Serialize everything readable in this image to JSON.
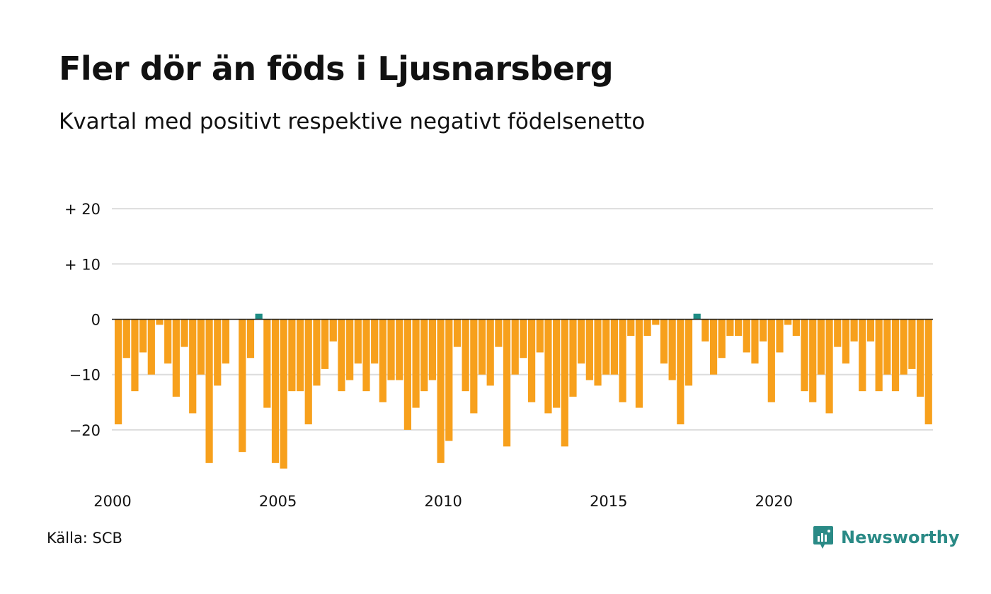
{
  "header": {
    "title": "Fler dör än föds i Ljusnarsberg",
    "subtitle": "Kvartal med positivt respektive negativt födelsenetto"
  },
  "footer": {
    "source": "Källa: SCB",
    "brand": "Newsworthy",
    "brand_icon": "newsworthy-logo-icon"
  },
  "colors": {
    "negative": "#F7A01C",
    "positive": "#1E8C84",
    "grid": "#dddddd",
    "zero_line": "#222222",
    "brand": "#2a8a86"
  },
  "chart_data": {
    "type": "bar",
    "title": "Fler dör än föds i Ljusnarsberg",
    "subtitle": "Kvartal med positivt respektive negativt födelsenetto",
    "x_start_year": 2000,
    "periods_per_year": 4,
    "ylim": [
      -29,
      20
    ],
    "y_ticks": [
      {
        "value": 20,
        "label": "+ 20"
      },
      {
        "value": 10,
        "label": "+ 10"
      },
      {
        "value": 0,
        "label": "0"
      },
      {
        "value": -10,
        "label": "−10"
      },
      {
        "value": -20,
        "label": "−20"
      }
    ],
    "x_ticks": [
      {
        "year": 2000,
        "label": "2000"
      },
      {
        "year": 2005,
        "label": "2005"
      },
      {
        "year": 2010,
        "label": "2010"
      },
      {
        "year": 2015,
        "label": "2015"
      },
      {
        "year": 2020,
        "label": "2020"
      }
    ],
    "grid": true,
    "legend": "none",
    "values": [
      -19,
      -7,
      -13,
      -6,
      -10,
      -1,
      -8,
      -14,
      -5,
      -17,
      -10,
      -26,
      -12,
      -8,
      0,
      -24,
      -7,
      1,
      -16,
      -26,
      -27,
      -13,
      -13,
      -19,
      -12,
      -9,
      -4,
      -13,
      -11,
      -8,
      -13,
      -8,
      -15,
      -11,
      -11,
      -20,
      -16,
      -13,
      -11,
      -26,
      -22,
      -5,
      -13,
      -17,
      -10,
      -12,
      -5,
      -23,
      -10,
      -7,
      -15,
      -6,
      -17,
      -16,
      -23,
      -14,
      -8,
      -11,
      -12,
      -10,
      -10,
      -15,
      -3,
      -16,
      -3,
      -1,
      -8,
      -11,
      -19,
      -12,
      1,
      -4,
      -10,
      -7,
      -3,
      -3,
      -6,
      -8,
      -4,
      -15,
      -6,
      -1,
      -3,
      -13,
      -15,
      -10,
      -17,
      -5,
      -8,
      -4,
      -13,
      -4,
      -13,
      -10,
      -13,
      -10,
      -9,
      -14,
      -19
    ]
  }
}
